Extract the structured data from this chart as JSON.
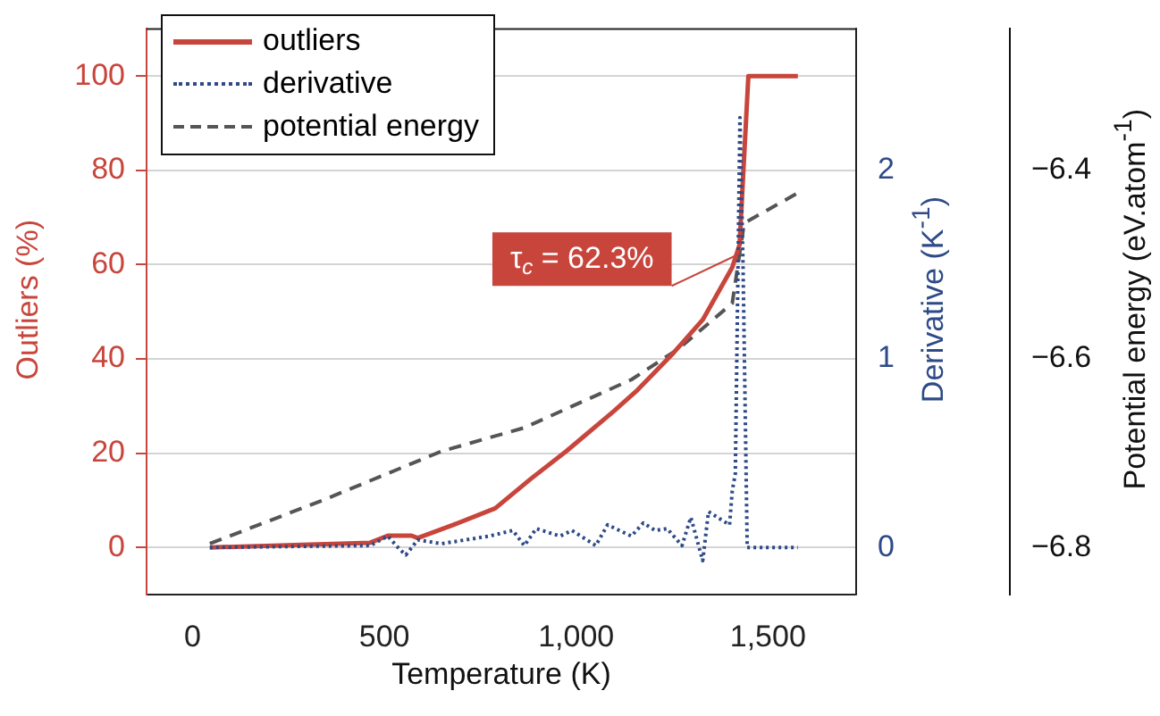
{
  "chart_data": {
    "type": "line",
    "xlabel": "Temperature (K)",
    "ylabel": "Outliers (%)",
    "y2label": "Derivative (K$^{-1}$)",
    "y3label": "Potential energy (eV.atom$^{-1}$)",
    "xlim": [
      -120,
      1730
    ],
    "xticks": [
      0,
      500,
      {
        "value": 1000,
        "label": "1,000"
      },
      {
        "value": 1500,
        "label": "1,500"
      }
    ],
    "ylim": [
      -10,
      110
    ],
    "yticks": [
      0,
      20,
      40,
      60,
      80,
      100
    ],
    "y2lim": [
      -0.25,
      2.75
    ],
    "y2ticks": [
      0,
      1,
      2
    ],
    "y3lim": [
      -6.85,
      -6.25
    ],
    "y3ticks": [
      {
        "value": -6.8,
        "label": "−6.8"
      },
      {
        "value": -6.6,
        "label": "−6.6"
      },
      {
        "value": -6.4,
        "label": "−6.4"
      }
    ],
    "grid": "y",
    "legend": "top left",
    "annotations": [
      {
        "text": "τ$_{c}$ = 62.3%",
        "x": 1426,
        "y": 62.3
      }
    ],
    "series": [
      {
        "name": "outliers",
        "color": "#c8453c",
        "line_style": "solid",
        "x": [
          45,
          463,
          509,
          571,
          587,
          680,
          789,
          881,
          974,
          1098,
          1160,
          1253,
          1330,
          1407,
          1426,
          1449,
          1578
        ],
        "values": [
          0,
          1,
          2.5,
          2.5,
          2,
          4.8,
          8.3,
          14.5,
          20.4,
          28.9,
          33.4,
          41.2,
          48.3,
          59.4,
          64.2,
          100,
          100
        ]
      },
      {
        "name": "derivative",
        "color": "#2e4a87",
        "line_style": "dotted",
        "axis": "y2",
        "x": [
          45,
          463,
          509,
          540,
          556,
          587,
          649,
          711,
          773,
          835,
          865,
          896,
          958,
          989,
          1051,
          1082,
          1144,
          1175,
          1206,
          1237,
          1276,
          1299,
          1330,
          1345,
          1376,
          1400,
          1407,
          1415,
          1427,
          1435,
          1446,
          1578
        ],
        "values": [
          0,
          0.01,
          0.06,
          -0.01,
          -0.04,
          0.04,
          0.02,
          0.04,
          0.06,
          0.09,
          0.01,
          0.1,
          0.06,
          0.09,
          0.01,
          0.12,
          0.06,
          0.13,
          0.09,
          0.1,
          0.01,
          0.16,
          -0.07,
          0.19,
          0.15,
          0.12,
          0.3,
          0.39,
          2.28,
          1.51,
          0,
          0
        ]
      },
      {
        "name": "potential energy",
        "color": "#555555",
        "line_style": "dashed",
        "axis": "y3",
        "x": [
          45,
          339,
          649,
          865,
          1144,
          1268,
          1407,
          1438,
          1578
        ],
        "values": [
          -6.796,
          -6.75,
          -6.698,
          -6.673,
          -6.622,
          -6.589,
          -6.541,
          -6.456,
          -6.424
        ]
      }
    ]
  }
}
